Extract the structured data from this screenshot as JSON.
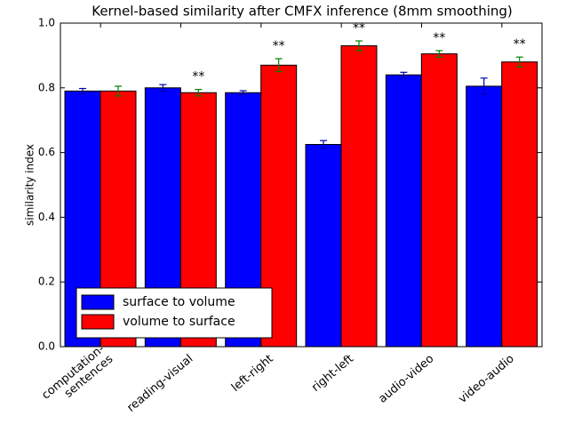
{
  "chart_data": {
    "type": "bar",
    "title": "Kernel-based similarity after CMFX inference (8mm smoothing)",
    "y_label": "similarity index",
    "categories": [
      "computation-\nsentences",
      "reading-visual",
      "left-right",
      "right-left",
      "audio-video",
      "video-audio"
    ],
    "series": [
      {
        "name": "surface to volume",
        "color": "#0000ff",
        "error_color": "#0000aa",
        "values": [
          0.79,
          0.8,
          0.785,
          0.625,
          0.84,
          0.805
        ],
        "errors": [
          0.008,
          0.01,
          0.006,
          0.012,
          0.008,
          0.025
        ]
      },
      {
        "name": "volume to surface",
        "color": "#ff0000",
        "error_color": "#008000",
        "values": [
          0.79,
          0.785,
          0.87,
          0.93,
          0.905,
          0.88
        ],
        "errors": [
          0.015,
          0.01,
          0.02,
          0.015,
          0.01,
          0.015
        ]
      }
    ],
    "annotations": [
      {
        "category": "reading-visual",
        "text": "**"
      },
      {
        "category": "left-right",
        "text": "**"
      },
      {
        "category": "right-left",
        "text": "**"
      },
      {
        "category": "audio-video",
        "text": "**"
      },
      {
        "category": "video-audio",
        "text": "**"
      }
    ],
    "ylim": [
      0,
      1
    ],
    "yticks": [
      {
        "value": 0,
        "label": "0.0"
      },
      {
        "value": 0.2,
        "label": "0.2"
      },
      {
        "value": 0.4,
        "label": "0.4"
      },
      {
        "value": 0.6,
        "label": "0.6"
      },
      {
        "value": 0.8,
        "label": "0.8"
      },
      {
        "value": 1,
        "label": "1.0"
      }
    ],
    "grid": false,
    "legend": "lower left"
  }
}
